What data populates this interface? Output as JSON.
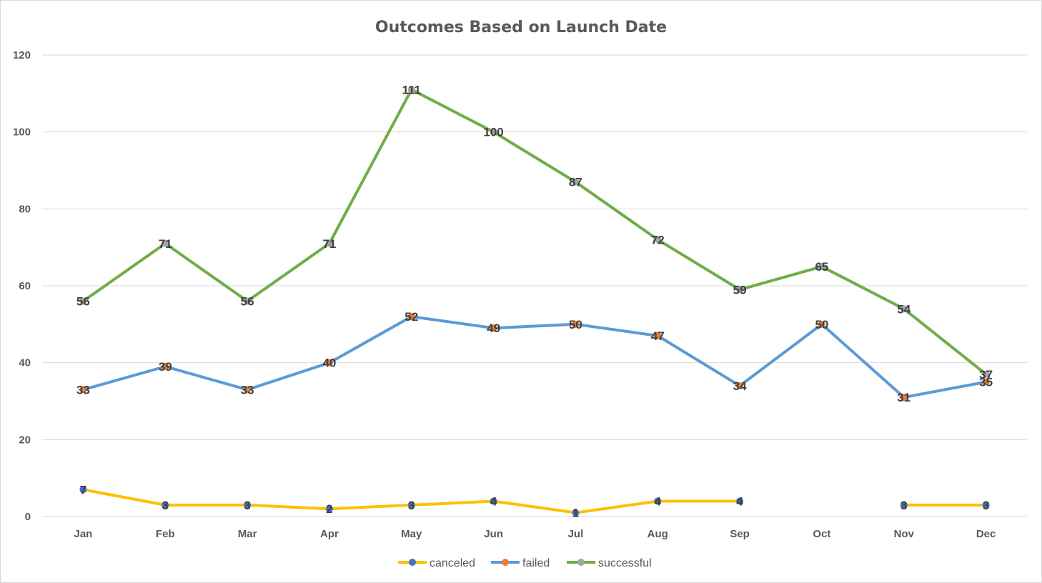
{
  "chart_data": {
    "type": "line",
    "title": "Outcomes Based on Launch Date",
    "xlabel": "",
    "ylabel": "",
    "categories": [
      "Jan",
      "Feb",
      "Mar",
      "Apr",
      "May",
      "Jun",
      "Jul",
      "Aug",
      "Sep",
      "Oct",
      "Nov",
      "Dec"
    ],
    "ylim": [
      0,
      120
    ],
    "yticks": [
      0,
      20,
      40,
      60,
      80,
      100,
      120
    ],
    "grid": true,
    "legend_position": "bottom",
    "data_labels": true,
    "series": [
      {
        "name": "canceled",
        "color": "#ffc000",
        "marker_color": "#4472c4",
        "values": [
          7,
          3,
          3,
          2,
          3,
          4,
          1,
          4,
          4,
          null,
          3,
          3
        ]
      },
      {
        "name": "failed",
        "color": "#5b9bd5",
        "marker_color": "#ed7d31",
        "values": [
          33,
          39,
          33,
          40,
          52,
          49,
          50,
          47,
          34,
          50,
          31,
          35
        ]
      },
      {
        "name": "successful",
        "color": "#70ad47",
        "marker_color": "#a5a5a5",
        "values": [
          56,
          71,
          56,
          71,
          111,
          100,
          87,
          72,
          59,
          65,
          54,
          37
        ]
      }
    ]
  }
}
